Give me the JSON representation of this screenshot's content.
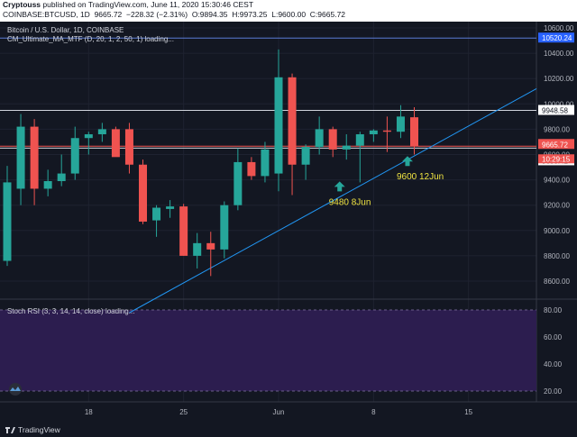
{
  "header": {
    "publisher": "Cryptouss",
    "line1_rest": "published on TradingView.com, June 11, 2020 15:30:46 CEST",
    "symbol": "COINBASE:BTCUSD, 1D",
    "price": "9665.72",
    "change": "−228.32 (−2.31%)",
    "o": "O:9894.35",
    "h": "H:9973.25",
    "l": "L:9600.00",
    "c": "C:9665.72"
  },
  "legend": {
    "title": "Bitcoin / U.S. Dollar, 1D, COINBASE",
    "indicator": "CM_Ultimate_MA_MTF (D, 20, 1, 2, 50, 1) loading..."
  },
  "rsi": {
    "label": "Stoch RSI (3, 3, 14, 14, close) loading...",
    "ticks": [
      "80.00",
      "60.00",
      "40.00",
      "20.00"
    ]
  },
  "chart_data": {
    "type": "candlestick",
    "y_ticks": [
      8600,
      8800,
      9000,
      9200,
      9400,
      9600,
      9800,
      10000,
      10200,
      10400,
      10600
    ],
    "y_tick_labels": [
      "8600.00",
      "8800.00",
      "9000.00",
      "9200.00",
      "9400.00",
      "9600.00",
      "9800.00",
      "10000.00",
      "10200.00",
      "10400.00",
      "10600.00"
    ],
    "x_ticks": [
      {
        "label": "18",
        "day": 6
      },
      {
        "label": "25",
        "day": 13
      },
      {
        "label": "Jun",
        "day": 20
      },
      {
        "label": "8",
        "day": 27
      },
      {
        "label": "15",
        "day": 34
      }
    ],
    "candles": [
      {
        "day": 0,
        "o": 8760,
        "h": 9510,
        "l": 8720,
        "c": 9380
      },
      {
        "day": 1,
        "o": 9330,
        "h": 9920,
        "l": 9200,
        "c": 9820
      },
      {
        "day": 2,
        "o": 9820,
        "h": 9880,
        "l": 9200,
        "c": 9330
      },
      {
        "day": 3,
        "o": 9330,
        "h": 9480,
        "l": 9270,
        "c": 9390
      },
      {
        "day": 4,
        "o": 9390,
        "h": 9600,
        "l": 9350,
        "c": 9450
      },
      {
        "day": 5,
        "o": 9450,
        "h": 9820,
        "l": 9400,
        "c": 9730
      },
      {
        "day": 6,
        "o": 9730,
        "h": 9780,
        "l": 9600,
        "c": 9760
      },
      {
        "day": 7,
        "o": 9760,
        "h": 9850,
        "l": 9700,
        "c": 9800
      },
      {
        "day": 8,
        "o": 9800,
        "h": 9820,
        "l": 9590,
        "c": 9580
      },
      {
        "day": 9,
        "o": 9800,
        "h": 9850,
        "l": 9450,
        "c": 9520
      },
      {
        "day": 10,
        "o": 9520,
        "h": 9560,
        "l": 9050,
        "c": 9070
      },
      {
        "day": 11,
        "o": 9080,
        "h": 9200,
        "l": 8950,
        "c": 9180
      },
      {
        "day": 12,
        "o": 9170,
        "h": 9240,
        "l": 9100,
        "c": 9190
      },
      {
        "day": 13,
        "o": 9190,
        "h": 9210,
        "l": 8800,
        "c": 8800
      },
      {
        "day": 14,
        "o": 8800,
        "h": 8980,
        "l": 8700,
        "c": 8900
      },
      {
        "day": 15,
        "o": 8900,
        "h": 8990,
        "l": 8640,
        "c": 8850
      },
      {
        "day": 16,
        "o": 8850,
        "h": 9230,
        "l": 8780,
        "c": 9200
      },
      {
        "day": 17,
        "o": 9200,
        "h": 9650,
        "l": 9160,
        "c": 9540
      },
      {
        "day": 18,
        "o": 9540,
        "h": 9580,
        "l": 9400,
        "c": 9430
      },
      {
        "day": 19,
        "o": 9430,
        "h": 9700,
        "l": 9380,
        "c": 9640
      },
      {
        "day": 20,
        "o": 9450,
        "h": 10430,
        "l": 9310,
        "c": 10210
      },
      {
        "day": 21,
        "o": 10210,
        "h": 10240,
        "l": 9280,
        "c": 9520
      },
      {
        "day": 22,
        "o": 9520,
        "h": 9680,
        "l": 9400,
        "c": 9660
      },
      {
        "day": 23,
        "o": 9660,
        "h": 9900,
        "l": 9600,
        "c": 9800
      },
      {
        "day": 24,
        "o": 9800,
        "h": 9820,
        "l": 9580,
        "c": 9640
      },
      {
        "day": 25,
        "o": 9640,
        "h": 9760,
        "l": 9560,
        "c": 9670
      },
      {
        "day": 26,
        "o": 9670,
        "h": 9780,
        "l": 9380,
        "c": 9760
      },
      {
        "day": 27,
        "o": 9760,
        "h": 9800,
        "l": 9700,
        "c": 9790
      },
      {
        "day": 28,
        "o": 9790,
        "h": 9900,
        "l": 9620,
        "c": 9780
      },
      {
        "day": 29,
        "o": 9780,
        "h": 9990,
        "l": 9730,
        "c": 9900
      },
      {
        "day": 30,
        "o": 9894.35,
        "h": 9973.25,
        "l": 9600,
        "c": 9665.72
      }
    ],
    "trendline": {
      "from": {
        "day": 9,
        "price": 8350
      },
      "to": {
        "day": 41,
        "price": 10120
      }
    },
    "hlines": [
      {
        "price": 10520.24,
        "color": "#5b7bd5"
      },
      {
        "price": 9948.58,
        "color": "#d1d4dc"
      },
      {
        "price": 9665.72,
        "color": "#ef5350"
      },
      {
        "price": 9650.42,
        "color": "#d1d4dc"
      }
    ],
    "price_labels": [
      {
        "price": 10520.24,
        "text": "10520.24",
        "bg": "#2962ff",
        "fg": "#ffffff"
      },
      {
        "price": 9948.58,
        "text": "9948.58",
        "bg": "#ffffff",
        "fg": "#131722"
      },
      {
        "price": 9665.72,
        "text": "9665.72",
        "bg": "#ef5350",
        "fg": "#ffffff"
      },
      {
        "price": 9650.42,
        "text": "9650.42",
        "bg": "#ffffff",
        "fg": "#131722"
      }
    ],
    "countdown": "10:29:15",
    "annotations": [
      {
        "day": 24.5,
        "price": 9345,
        "text": "9480   8Jun"
      },
      {
        "day": 29.5,
        "price": 9545,
        "text": "9600   12Jun"
      }
    ],
    "colors": {
      "up": "#26a69a",
      "down": "#ef5350",
      "trend": "#2196f3",
      "annotation": "#f0e442",
      "arrow": "#26a69a",
      "rsi_bg": "#2c1d4f"
    }
  },
  "footer": {
    "brand": "TradingView"
  }
}
